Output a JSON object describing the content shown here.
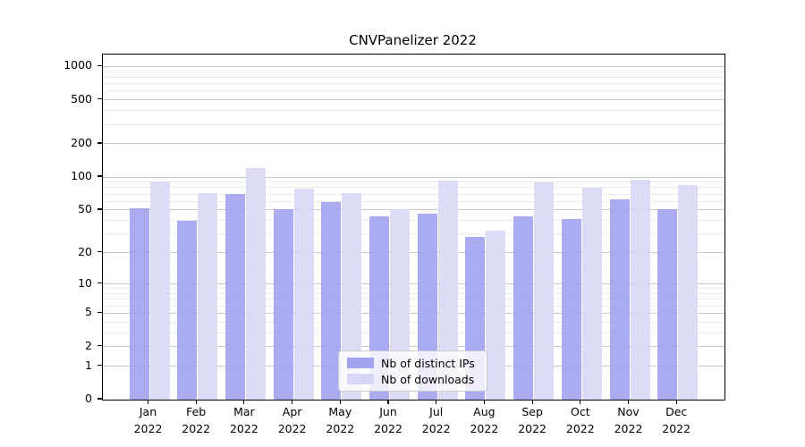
{
  "window": {
    "title": "CNVPanelizer 2022"
  },
  "chart_data": {
    "type": "bar",
    "title": "CNVPanelizer 2022",
    "xlabel": "",
    "ylabel": "",
    "x_categories_line1": [
      "Jan",
      "Feb",
      "Mar",
      "Apr",
      "May",
      "Jun",
      "Jul",
      "Aug",
      "Sep",
      "Oct",
      "Nov",
      "Dec"
    ],
    "x_categories_line2": [
      "2022",
      "2022",
      "2022",
      "2022",
      "2022",
      "2022",
      "2022",
      "2022",
      "2022",
      "2022",
      "2022",
      "2022"
    ],
    "series": [
      {
        "name": "Nb of distinct IPs",
        "color": "#a2a2f0",
        "values": [
          52,
          40,
          70,
          51,
          59,
          44,
          46,
          28,
          44,
          41,
          63,
          51
        ]
      },
      {
        "name": "Nb of downloads",
        "color": "#d8d8f6",
        "values": [
          91,
          72,
          121,
          78,
          71,
          51,
          93,
          32,
          89,
          80,
          94,
          85
        ]
      }
    ],
    "y_axis": {
      "scale": "log10(1+x)",
      "major_ticks": [
        0,
        1,
        2,
        5,
        10,
        20,
        50,
        100,
        200,
        500,
        1000
      ],
      "minor_ticks": [
        3,
        4,
        6,
        7,
        8,
        9,
        30,
        40,
        60,
        70,
        80,
        90,
        300,
        400,
        600,
        700,
        800,
        900
      ],
      "ylim_top_value": 1281
    },
    "grid": "horizontal",
    "legend_position": "lower center",
    "colors": {
      "bar_distinct_ips": "#a2a2f0",
      "bar_downloads": "#d8d8f6",
      "grid_major": "#c9c9c9",
      "grid_minor": "#ececec",
      "axis": "#000000",
      "background": "#ffffff"
    }
  }
}
